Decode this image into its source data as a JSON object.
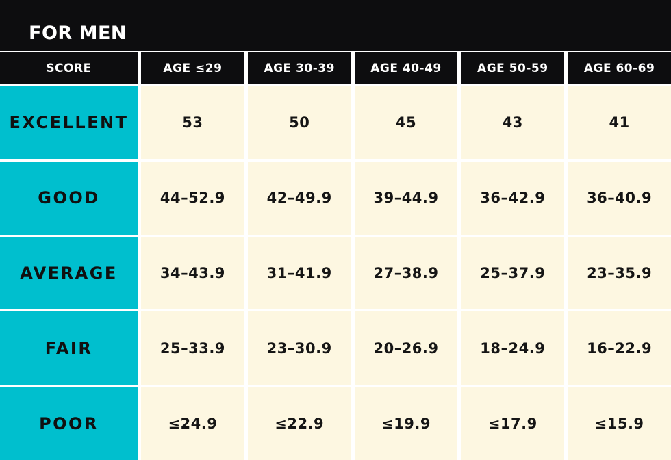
{
  "title": "FOR MEN",
  "colors": {
    "band_black": "#0d0d0f",
    "accent_cyan": "#00bfce",
    "cell_cream": "#fdf7e1",
    "separator_white": "#ffffff",
    "text_dark": "#101010",
    "text_light": "#ffffff"
  },
  "chart_data": {
    "type": "table",
    "title": "FOR MEN",
    "columns": [
      "SCORE",
      "AGE ≤29",
      "AGE 30-39",
      "AGE 40-49",
      "AGE 50-59",
      "AGE 60-69"
    ],
    "rows": [
      {
        "label": "EXCELLENT",
        "values": [
          "53",
          "50",
          "45",
          "43",
          "41"
        ]
      },
      {
        "label": "GOOD",
        "values": [
          "44–52.9",
          "42–49.9",
          "39–44.9",
          "36–42.9",
          "36–40.9"
        ]
      },
      {
        "label": "AVERAGE",
        "values": [
          "34–43.9",
          "31–41.9",
          "27–38.9",
          "25–37.9",
          "23–35.9"
        ]
      },
      {
        "label": "FAIR",
        "values": [
          "25–33.9",
          "23–30.9",
          "20–26.9",
          "18–24.9",
          "16–22.9"
        ]
      },
      {
        "label": "POOR",
        "values": [
          "≤24.9",
          "≤22.9",
          "≤19.9",
          "≤17.9",
          "≤15.9"
        ]
      }
    ]
  }
}
